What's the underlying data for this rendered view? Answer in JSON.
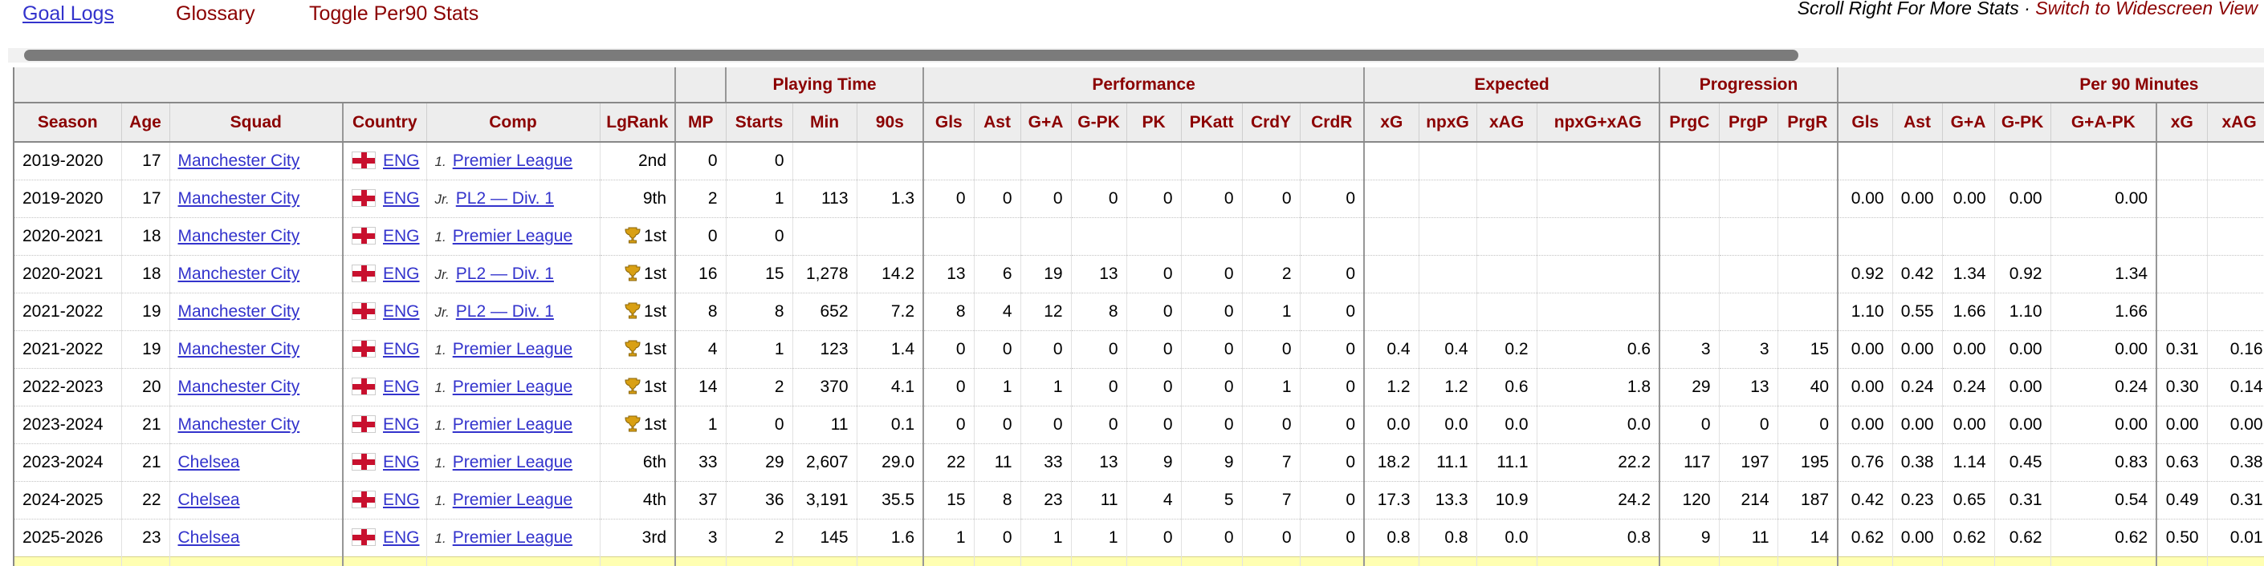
{
  "toolbar": {
    "goal_logs": "Goal Logs",
    "glossary": "Glossary",
    "toggle_per90": "Toggle Per90 Stats",
    "scroll_hint": "Scroll Right For More Stats",
    "separator": " · ",
    "widescreen": "Switch to Widescreen View"
  },
  "colors": {
    "accent_maroon": "#8b0000",
    "link_blue": "#3333cc",
    "header_bg": "#ededed",
    "england_red": "#c8102e",
    "trophy_gold": "#d9a013",
    "highlight_yellow": "#ffffb2",
    "scrollbar_thumb": "#7b7b7b"
  },
  "table": {
    "groups": [
      {
        "label": ""
      },
      {
        "label": ""
      },
      {
        "label": "Playing Time"
      },
      {
        "label": "Performance"
      },
      {
        "label": "Expected"
      },
      {
        "label": "Progression"
      },
      {
        "label": "Per 90 Minutes"
      }
    ],
    "columns": [
      "Season",
      "Age",
      "Squad",
      "Country",
      "Comp",
      "LgRank",
      "MP",
      "Starts",
      "Min",
      "90s",
      "Gls",
      "Ast",
      "G+A",
      "G-PK",
      "PK",
      "PKatt",
      "CrdY",
      "CrdR",
      "xG",
      "npxG",
      "xAG",
      "npxG+xAG",
      "PrgC",
      "PrgP",
      "PrgR",
      "Gls",
      "Ast",
      "G+A",
      "G-PK",
      "G+A-PK",
      "xG",
      "xAG"
    ],
    "country_code": "ENG",
    "rows": [
      {
        "season": "2019-2020",
        "age": "17",
        "squad": "Manchester City",
        "comp_prefix": "1.",
        "comp": "Premier League",
        "lgrank": "2nd",
        "trophy": false,
        "stats": [
          "0",
          "0",
          "",
          "",
          "",
          "",
          "",
          "",
          "",
          "",
          "",
          "",
          "",
          "",
          "",
          "",
          "",
          "",
          "",
          "",
          "",
          "",
          "",
          "",
          "",
          ""
        ]
      },
      {
        "season": "2019-2020",
        "age": "17",
        "squad": "Manchester City",
        "comp_prefix": "Jr.",
        "comp": "PL2 — Div. 1",
        "lgrank": "9th",
        "trophy": false,
        "stats": [
          "2",
          "1",
          "113",
          "1.3",
          "0",
          "0",
          "0",
          "0",
          "0",
          "0",
          "0",
          "0",
          "",
          "",
          "",
          "",
          "",
          "",
          "",
          "0.00",
          "0.00",
          "0.00",
          "0.00",
          "0.00",
          "",
          ""
        ]
      },
      {
        "season": "2020-2021",
        "age": "18",
        "squad": "Manchester City",
        "comp_prefix": "1.",
        "comp": "Premier League",
        "lgrank": "1st",
        "trophy": true,
        "stats": [
          "0",
          "0",
          "",
          "",
          "",
          "",
          "",
          "",
          "",
          "",
          "",
          "",
          "",
          "",
          "",
          "",
          "",
          "",
          "",
          "",
          "",
          "",
          "",
          "",
          "",
          ""
        ]
      },
      {
        "season": "2020-2021",
        "age": "18",
        "squad": "Manchester City",
        "comp_prefix": "Jr.",
        "comp": "PL2 — Div. 1",
        "lgrank": "1st",
        "trophy": true,
        "stats": [
          "16",
          "15",
          "1,278",
          "14.2",
          "13",
          "6",
          "19",
          "13",
          "0",
          "0",
          "2",
          "0",
          "",
          "",
          "",
          "",
          "",
          "",
          "",
          "0.92",
          "0.42",
          "1.34",
          "0.92",
          "1.34",
          "",
          ""
        ]
      },
      {
        "season": "2021-2022",
        "age": "19",
        "squad": "Manchester City",
        "comp_prefix": "Jr.",
        "comp": "PL2 — Div. 1",
        "lgrank": "1st",
        "trophy": true,
        "stats": [
          "8",
          "8",
          "652",
          "7.2",
          "8",
          "4",
          "12",
          "8",
          "0",
          "0",
          "1",
          "0",
          "",
          "",
          "",
          "",
          "",
          "",
          "",
          "1.10",
          "0.55",
          "1.66",
          "1.10",
          "1.66",
          "",
          ""
        ]
      },
      {
        "season": "2021-2022",
        "age": "19",
        "squad": "Manchester City",
        "comp_prefix": "1.",
        "comp": "Premier League",
        "lgrank": "1st",
        "trophy": true,
        "stats": [
          "4",
          "1",
          "123",
          "1.4",
          "0",
          "0",
          "0",
          "0",
          "0",
          "0",
          "0",
          "0",
          "0.4",
          "0.4",
          "0.2",
          "0.6",
          "3",
          "3",
          "15",
          "0.00",
          "0.00",
          "0.00",
          "0.00",
          "0.00",
          "0.31",
          "0.16"
        ]
      },
      {
        "season": "2022-2023",
        "age": "20",
        "squad": "Manchester City",
        "comp_prefix": "1.",
        "comp": "Premier League",
        "lgrank": "1st",
        "trophy": true,
        "stats": [
          "14",
          "2",
          "370",
          "4.1",
          "0",
          "1",
          "1",
          "0",
          "0",
          "0",
          "1",
          "0",
          "1.2",
          "1.2",
          "0.6",
          "1.8",
          "29",
          "13",
          "40",
          "0.00",
          "0.24",
          "0.24",
          "0.00",
          "0.24",
          "0.30",
          "0.14"
        ]
      },
      {
        "season": "2023-2024",
        "age": "21",
        "squad": "Manchester City",
        "comp_prefix": "1.",
        "comp": "Premier League",
        "lgrank": "1st",
        "trophy": true,
        "stats": [
          "1",
          "0",
          "11",
          "0.1",
          "0",
          "0",
          "0",
          "0",
          "0",
          "0",
          "0",
          "0",
          "0.0",
          "0.0",
          "0.0",
          "0.0",
          "0",
          "0",
          "0",
          "0.00",
          "0.00",
          "0.00",
          "0.00",
          "0.00",
          "0.00",
          "0.00"
        ]
      },
      {
        "season": "2023-2024",
        "age": "21",
        "squad": "Chelsea",
        "comp_prefix": "1.",
        "comp": "Premier League",
        "lgrank": "6th",
        "trophy": false,
        "stats": [
          "33",
          "29",
          "2,607",
          "29.0",
          "22",
          "11",
          "33",
          "13",
          "9",
          "9",
          "7",
          "0",
          "18.2",
          "11.1",
          "11.1",
          "22.2",
          "117",
          "197",
          "195",
          "0.76",
          "0.38",
          "1.14",
          "0.45",
          "0.83",
          "0.63",
          "0.38"
        ]
      },
      {
        "season": "2024-2025",
        "age": "22",
        "squad": "Chelsea",
        "comp_prefix": "1.",
        "comp": "Premier League",
        "lgrank": "4th",
        "trophy": false,
        "stats": [
          "37",
          "36",
          "3,191",
          "35.5",
          "15",
          "8",
          "23",
          "11",
          "4",
          "5",
          "7",
          "0",
          "17.3",
          "13.3",
          "10.9",
          "24.2",
          "120",
          "214",
          "187",
          "0.42",
          "0.23",
          "0.65",
          "0.31",
          "0.54",
          "0.49",
          "0.31"
        ]
      },
      {
        "season": "2025-2026",
        "age": "23",
        "squad": "Chelsea",
        "comp_prefix": "1.",
        "comp": "Premier League",
        "lgrank": "3rd",
        "trophy": false,
        "stats": [
          "3",
          "2",
          "145",
          "1.6",
          "1",
          "0",
          "1",
          "1",
          "0",
          "0",
          "0",
          "0",
          "0.8",
          "0.8",
          "0.0",
          "0.8",
          "9",
          "11",
          "14",
          "0.62",
          "0.00",
          "0.62",
          "0.62",
          "0.62",
          "0.50",
          "0.01"
        ]
      }
    ]
  }
}
